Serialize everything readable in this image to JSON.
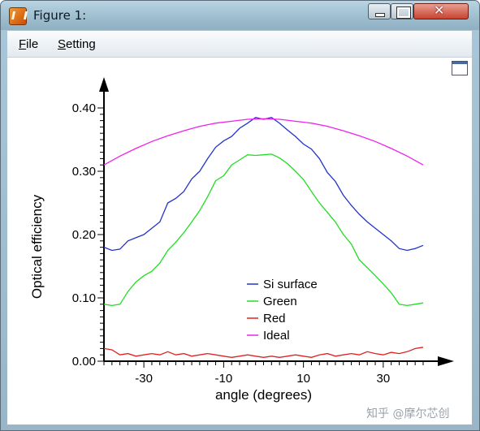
{
  "window": {
    "title": "Figure 1:"
  },
  "menu": {
    "file_label": "File",
    "file_rest": "ile",
    "file_mnemonic": "F",
    "setting_mnemonic": "S",
    "setting_rest": "etting"
  },
  "watermark": "知乎 @摩尔芯创",
  "chart_data": {
    "type": "line",
    "xlabel": "angle (degrees)",
    "ylabel": "Optical efficiency",
    "xlim": [
      -40,
      40
    ],
    "ylim": [
      0,
      0.4
    ],
    "x_ticks": [
      -30,
      -10,
      10,
      30
    ],
    "y_ticks": [
      0.0,
      0.1,
      0.2,
      0.3,
      0.4
    ],
    "y_tick_labels": [
      "0.00",
      "0.10",
      "0.20",
      "0.30",
      "0.40"
    ],
    "legend_position": "center-bottom",
    "series": [
      {
        "name": "Si surface",
        "color": "#2233cc",
        "x": [
          -40,
          -38,
          -36,
          -34,
          -32,
          -30,
          -28,
          -26,
          -24,
          -22,
          -20,
          -18,
          -16,
          -14,
          -12,
          -10,
          -8,
          -6,
          -4,
          -2,
          0,
          2,
          4,
          6,
          8,
          10,
          12,
          14,
          16,
          18,
          20,
          22,
          24,
          26,
          28,
          30,
          32,
          34,
          36,
          38,
          40
        ],
        "y": [
          0.18,
          0.175,
          0.177,
          0.19,
          0.195,
          0.2,
          0.21,
          0.22,
          0.25,
          0.257,
          0.268,
          0.288,
          0.3,
          0.32,
          0.338,
          0.348,
          0.355,
          0.368,
          0.376,
          0.385,
          0.382,
          0.385,
          0.376,
          0.365,
          0.355,
          0.343,
          0.335,
          0.32,
          0.298,
          0.284,
          0.262,
          0.246,
          0.232,
          0.22,
          0.21,
          0.2,
          0.19,
          0.178,
          0.175,
          0.178,
          0.183
        ]
      },
      {
        "name": "Green",
        "color": "#22dd22",
        "x": [
          -40,
          -38,
          -36,
          -34,
          -32,
          -30,
          -28,
          -26,
          -24,
          -22,
          -20,
          -18,
          -16,
          -14,
          -12,
          -10,
          -8,
          -6,
          -4,
          -2,
          0,
          2,
          4,
          6,
          8,
          10,
          12,
          14,
          16,
          18,
          20,
          22,
          24,
          26,
          28,
          30,
          32,
          34,
          36,
          38,
          40
        ],
        "y": [
          0.09,
          0.088,
          0.09,
          0.11,
          0.125,
          0.135,
          0.142,
          0.155,
          0.175,
          0.188,
          0.203,
          0.22,
          0.238,
          0.26,
          0.285,
          0.293,
          0.31,
          0.318,
          0.326,
          0.325,
          0.326,
          0.327,
          0.321,
          0.312,
          0.3,
          0.287,
          0.268,
          0.25,
          0.235,
          0.22,
          0.2,
          0.185,
          0.16,
          0.148,
          0.135,
          0.122,
          0.108,
          0.09,
          0.088,
          0.09,
          0.092
        ]
      },
      {
        "name": "Red",
        "color": "#dd2222",
        "x": [
          -40,
          -38,
          -36,
          -34,
          -32,
          -30,
          -28,
          -26,
          -24,
          -22,
          -20,
          -18,
          -16,
          -14,
          -12,
          -10,
          -8,
          -6,
          -4,
          -2,
          0,
          2,
          4,
          6,
          8,
          10,
          12,
          14,
          16,
          18,
          20,
          22,
          24,
          26,
          28,
          30,
          32,
          34,
          36,
          38,
          40
        ],
        "y": [
          0.02,
          0.018,
          0.01,
          0.012,
          0.008,
          0.01,
          0.012,
          0.01,
          0.015,
          0.01,
          0.012,
          0.008,
          0.01,
          0.012,
          0.01,
          0.008,
          0.006,
          0.008,
          0.01,
          0.008,
          0.006,
          0.008,
          0.006,
          0.008,
          0.01,
          0.008,
          0.006,
          0.01,
          0.012,
          0.008,
          0.01,
          0.012,
          0.01,
          0.015,
          0.012,
          0.01,
          0.014,
          0.012,
          0.015,
          0.02,
          0.022
        ]
      },
      {
        "name": "Ideal",
        "color": "#ee22ee",
        "x": [
          -40,
          -36,
          -32,
          -28,
          -24,
          -20,
          -16,
          -12,
          -8,
          -4,
          0,
          4,
          8,
          12,
          16,
          20,
          24,
          28,
          32,
          36,
          40
        ],
        "y": [
          0.31,
          0.324,
          0.336,
          0.347,
          0.356,
          0.364,
          0.371,
          0.376,
          0.379,
          0.382,
          0.383,
          0.382,
          0.379,
          0.376,
          0.371,
          0.364,
          0.356,
          0.347,
          0.336,
          0.324,
          0.31
        ]
      }
    ]
  }
}
